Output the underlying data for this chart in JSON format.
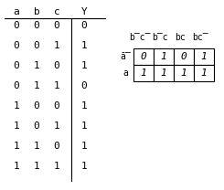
{
  "truth_table": {
    "headers": [
      "a",
      "b",
      "c",
      "Y"
    ],
    "rows": [
      [
        0,
        0,
        0,
        0
      ],
      [
        0,
        0,
        1,
        1
      ],
      [
        0,
        1,
        0,
        1
      ],
      [
        0,
        1,
        1,
        0
      ],
      [
        1,
        0,
        0,
        1
      ],
      [
        1,
        0,
        1,
        1
      ],
      [
        1,
        1,
        0,
        1
      ],
      [
        1,
        1,
        1,
        1
      ]
    ]
  },
  "kmap": {
    "col_headers": [
      "b̅c̅",
      "b̅c",
      "bc",
      "bc̅"
    ],
    "row_headers": [
      "ā̅",
      "a"
    ],
    "values": [
      [
        "0",
        "1",
        "0",
        "1"
      ],
      [
        "1",
        "1",
        "1",
        "1"
      ]
    ]
  },
  "bg_color": "#ffffff",
  "text_color": "#000000",
  "font_size": 8,
  "kmap_font_size": 8
}
